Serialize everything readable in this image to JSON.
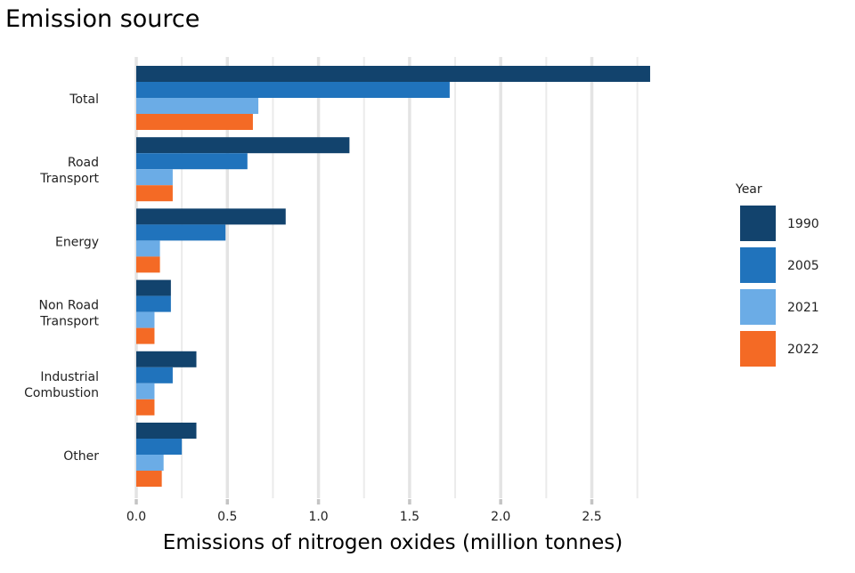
{
  "chart_data": {
    "type": "bar",
    "orientation": "horizontal",
    "title": "Emission source",
    "xlabel": "Emissions of nitrogen oxides (million tonnes)",
    "ylabel": "",
    "xlim": [
      0,
      2.85
    ],
    "xticks": [
      "0.0",
      "0.5",
      "1.0",
      "1.5",
      "2.0",
      "2.5"
    ],
    "grid": true,
    "categories": [
      [
        "Total"
      ],
      [
        "Road",
        "Transport"
      ],
      [
        "Energy"
      ],
      [
        "Non Road",
        "Transport"
      ],
      [
        "Industrial",
        "Combustion"
      ],
      [
        "Other"
      ]
    ],
    "legend": {
      "title": "Year",
      "position": "right"
    },
    "series": [
      {
        "name": "1990",
        "color": "#12436D",
        "values": [
          2.82,
          1.17,
          0.82,
          0.19,
          0.33,
          0.33
        ]
      },
      {
        "name": "2005",
        "color": "#2073BC",
        "values": [
          1.72,
          0.61,
          0.49,
          0.19,
          0.2,
          0.25
        ]
      },
      {
        "name": "2021",
        "color": "#6BACE6",
        "values": [
          0.67,
          0.2,
          0.13,
          0.1,
          0.1,
          0.15
        ]
      },
      {
        "name": "2022",
        "color": "#F46A25",
        "values": [
          0.64,
          0.2,
          0.13,
          0.1,
          0.1,
          0.14
        ]
      }
    ]
  }
}
